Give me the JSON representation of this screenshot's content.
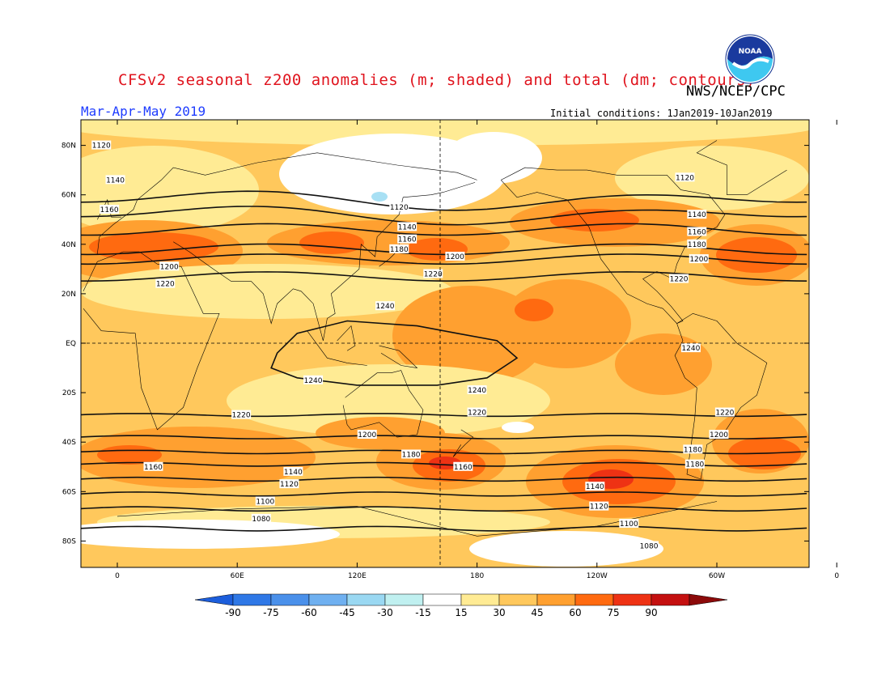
{
  "header": {
    "title": "CFSv2 seasonal z200 anomalies (m; shaded) and total (dm; contours)",
    "agency": "NWS/NCEP/CPC",
    "period": "Mar-Apr-May 2019",
    "initial_conditions": "Initial conditions: 1Jan2019-10Jan2019",
    "logo_text": "NOAA"
  },
  "map": {
    "lat_labels": [
      "80N",
      "60N",
      "40N",
      "20N",
      "EQ",
      "20S",
      "40S",
      "60S",
      "80S"
    ],
    "lon_labels": [
      "0",
      "60E",
      "120E",
      "180",
      "120W",
      "60W",
      "0"
    ],
    "contours": [
      {
        "label": "1240",
        "lat": -6
      },
      {
        "label": "1220",
        "lat": 27
      },
      {
        "label": "1220",
        "lat": -29
      },
      {
        "label": "1200",
        "lat": 34
      },
      {
        "label": "1200",
        "lat": -38
      },
      {
        "label": "1180",
        "lat": 38
      },
      {
        "label": "1180",
        "lat": -44
      },
      {
        "label": "1160",
        "lat": 46
      },
      {
        "label": "1160",
        "lat": -49
      },
      {
        "label": "1140",
        "lat": 52
      },
      {
        "label": "1140",
        "lat": -55
      },
      {
        "label": "1120",
        "lat": 58
      },
      {
        "label": "1120",
        "lat": -61
      },
      {
        "label": "1100",
        "lat": -67
      },
      {
        "label": "1080",
        "lat": -75
      }
    ],
    "contour_labels": [
      {
        "text": "1120",
        "lon": -8,
        "lat": 80
      },
      {
        "text": "1140",
        "lon": -1,
        "lat": 66
      },
      {
        "text": "1160",
        "lon": -4,
        "lat": 54
      },
      {
        "text": "1200",
        "lon": 26,
        "lat": 31
      },
      {
        "text": "1220",
        "lon": 24,
        "lat": 24
      },
      {
        "text": "1120",
        "lon": 141,
        "lat": 55
      },
      {
        "text": "1140",
        "lon": 145,
        "lat": 47
      },
      {
        "text": "1160",
        "lon": 145,
        "lat": 42
      },
      {
        "text": "1180",
        "lon": 141,
        "lat": 38
      },
      {
        "text": "1200",
        "lon": 169,
        "lat": 35
      },
      {
        "text": "1220",
        "lon": 158,
        "lat": 28
      },
      {
        "text": "1240",
        "lon": 134,
        "lat": 15
      },
      {
        "text": "1240",
        "lon": 98,
        "lat": -15
      },
      {
        "text": "1240",
        "lon": 180,
        "lat": -19
      },
      {
        "text": "1220",
        "lon": 180,
        "lat": -28
      },
      {
        "text": "1220",
        "lon": 62,
        "lat": -29
      },
      {
        "text": "1200",
        "lon": 125,
        "lat": -37
      },
      {
        "text": "1180",
        "lon": 147,
        "lat": -45
      },
      {
        "text": "1160",
        "lon": 173,
        "lat": -50
      },
      {
        "text": "1160",
        "lon": 18,
        "lat": -50
      },
      {
        "text": "1140",
        "lon": 88,
        "lat": -52
      },
      {
        "text": "1120",
        "lon": 86,
        "lat": -57
      },
      {
        "text": "1100",
        "lon": 74,
        "lat": -64
      },
      {
        "text": "1080",
        "lon": 72,
        "lat": -71
      },
      {
        "text": "1140",
        "lon": -121,
        "lat": -58
      },
      {
        "text": "1120",
        "lon": -119,
        "lat": -66
      },
      {
        "text": "1100",
        "lon": -104,
        "lat": -73
      },
      {
        "text": "1080",
        "lon": -94,
        "lat": -82
      },
      {
        "text": "1180",
        "lon": -72,
        "lat": -43
      },
      {
        "text": "1180",
        "lon": -71,
        "lat": -49
      },
      {
        "text": "1200",
        "lon": -59,
        "lat": -37
      },
      {
        "text": "1220",
        "lon": -56,
        "lat": -28
      },
      {
        "text": "1120",
        "lon": -76,
        "lat": 67
      },
      {
        "text": "1140",
        "lon": -70,
        "lat": 52
      },
      {
        "text": "1160",
        "lon": -70,
        "lat": 45
      },
      {
        "text": "1180",
        "lon": -70,
        "lat": 40
      },
      {
        "text": "1200",
        "lon": -69,
        "lat": 34
      },
      {
        "text": "1220",
        "lon": -79,
        "lat": 26
      },
      {
        "text": "1240",
        "lon": -73,
        "lat": -2
      }
    ]
  },
  "colorbar": {
    "labels": [
      "-90",
      "-75",
      "-60",
      "-45",
      "-30",
      "-15",
      "15",
      "30",
      "45",
      "60",
      "75",
      "90"
    ],
    "colors": [
      "#1c5edc",
      "#2f78e6",
      "#4a90ea",
      "#6fb0f0",
      "#9ad8f2",
      "#c0f0f0",
      "#ffffff",
      "#ffeb94",
      "#ffc85c",
      "#ffa030",
      "#ff6a10",
      "#ee3214",
      "#c41010",
      "#8c0a0a"
    ],
    "unit": "m"
  },
  "shading": {
    "colors": {
      "white": "#ffffff",
      "lightblue": "#a8e0f4",
      "pale": "#ffeb94",
      "light": "#ffc85c",
      "mid": "#ffa030",
      "dark": "#ff6a10",
      "red": "#ee3214"
    }
  }
}
